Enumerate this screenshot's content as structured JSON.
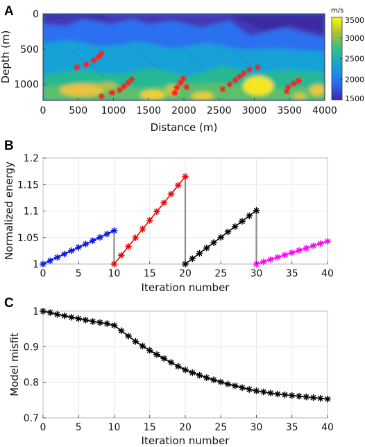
{
  "panels": {
    "a": {
      "letter": "A"
    },
    "b": {
      "letter": "B"
    },
    "c": {
      "letter": "C"
    }
  },
  "chart_data": [
    {
      "panel": "A",
      "type": "heatmap",
      "xlabel": "Distance (m)",
      "ylabel": "Depth (m)",
      "xlim": [
        0,
        4000
      ],
      "ylim": [
        1230,
        0
      ],
      "xticks": [
        0,
        500,
        1000,
        1500,
        2000,
        2500,
        3000,
        3500,
        4000
      ],
      "yticks": [
        0,
        500,
        1000
      ],
      "colorbar": {
        "unit": "m/s",
        "range": [
          1500,
          3500
        ],
        "ticks": [
          1500,
          2000,
          2500,
          3000,
          3500
        ]
      },
      "overlay_markers": {
        "marker": "*",
        "color": "#ff1f1f",
        "points": [
          [
            480,
            760
          ],
          [
            610,
            720
          ],
          [
            720,
            660
          ],
          [
            790,
            610
          ],
          [
            830,
            560
          ],
          [
            830,
            1170
          ],
          [
            980,
            1120
          ],
          [
            1090,
            1080
          ],
          [
            1150,
            1030
          ],
          [
            1210,
            980
          ],
          [
            1260,
            930
          ],
          [
            1870,
            1120
          ],
          [
            1900,
            1050
          ],
          [
            1950,
            980
          ],
          [
            1990,
            920
          ],
          [
            2040,
            1040
          ],
          [
            2550,
            1070
          ],
          [
            2650,
            1000
          ],
          [
            2730,
            940
          ],
          [
            2790,
            890
          ],
          [
            2850,
            840
          ],
          [
            2930,
            790
          ],
          [
            3050,
            760
          ],
          [
            3460,
            1100
          ],
          [
            3480,
            1040
          ],
          [
            3560,
            990
          ],
          [
            3630,
            950
          ]
        ]
      }
    },
    {
      "panel": "B",
      "type": "line",
      "xlabel": "Iteration number",
      "ylabel": "Normalized energy",
      "xlim": [
        0,
        40
      ],
      "ylim": [
        1,
        1.2
      ],
      "xticks": [
        0,
        5,
        10,
        15,
        20,
        25,
        30,
        35,
        40
      ],
      "yticks": [
        1,
        1.05,
        1.1,
        1.15,
        1.2
      ],
      "grid": true,
      "series": [
        {
          "color": "#0a14e6",
          "x": [
            0,
            1,
            2,
            3,
            4,
            5,
            6,
            7,
            8,
            9,
            10
          ],
          "y": [
            1.0,
            1.0063,
            1.0126,
            1.0189,
            1.0252,
            1.0315,
            1.0378,
            1.0441,
            1.0504,
            1.0567,
            1.063
          ]
        },
        {
          "color": "#f00000",
          "x": [
            10,
            11,
            12,
            13,
            14,
            15,
            16,
            17,
            18,
            19,
            20
          ],
          "y": [
            1.0,
            1.0165,
            1.033,
            1.0495,
            1.066,
            1.0825,
            1.099,
            1.1155,
            1.132,
            1.1485,
            1.165
          ]
        },
        {
          "color": "#000000",
          "x": [
            20,
            21,
            22,
            23,
            24,
            25,
            26,
            27,
            28,
            29,
            30
          ],
          "y": [
            1.0,
            1.0101,
            1.0202,
            1.0303,
            1.0404,
            1.0505,
            1.0606,
            1.0707,
            1.0808,
            1.0909,
            1.101
          ]
        },
        {
          "color": "#ff00ff",
          "x": [
            30,
            31,
            32,
            33,
            34,
            35,
            36,
            37,
            38,
            39,
            40
          ],
          "y": [
            1.0,
            1.0043,
            1.0086,
            1.0129,
            1.0172,
            1.0215,
            1.0258,
            1.0301,
            1.0344,
            1.0387,
            1.043
          ]
        }
      ],
      "connectors": {
        "color": "#8c8c8c",
        "segments": [
          {
            "x": 10,
            "y": [
              1.063,
              1.0
            ]
          },
          {
            "x": 20,
            "y": [
              1.165,
              1.0
            ]
          },
          {
            "x": 30,
            "y": [
              1.101,
              1.0
            ]
          }
        ]
      }
    },
    {
      "panel": "C",
      "type": "line",
      "xlabel": "Iteration number",
      "ylabel": "Model misfit",
      "xlim": [
        0,
        40
      ],
      "ylim": [
        0.7,
        1
      ],
      "xticks": [
        0,
        5,
        10,
        15,
        20,
        25,
        30,
        35,
        40
      ],
      "yticks": [
        0.7,
        0.8,
        0.9,
        1
      ],
      "grid": true,
      "series": [
        {
          "color": "#000000",
          "x": [
            0,
            1,
            2,
            3,
            4,
            5,
            6,
            7,
            8,
            9,
            10,
            11,
            12,
            13,
            14,
            15,
            16,
            17,
            18,
            19,
            20,
            21,
            22,
            23,
            24,
            25,
            26,
            27,
            28,
            29,
            30,
            31,
            32,
            33,
            34,
            35,
            36,
            37,
            38,
            39,
            40
          ],
          "y": [
            1.0,
            0.996,
            0.991,
            0.987,
            0.983,
            0.979,
            0.975,
            0.971,
            0.968,
            0.965,
            0.96,
            0.945,
            0.93,
            0.915,
            0.902,
            0.89,
            0.878,
            0.867,
            0.856,
            0.845,
            0.835,
            0.827,
            0.82,
            0.813,
            0.807,
            0.801,
            0.795,
            0.79,
            0.785,
            0.78,
            0.776,
            0.773,
            0.77,
            0.767,
            0.765,
            0.763,
            0.761,
            0.759,
            0.757,
            0.755,
            0.753
          ]
        }
      ]
    }
  ]
}
